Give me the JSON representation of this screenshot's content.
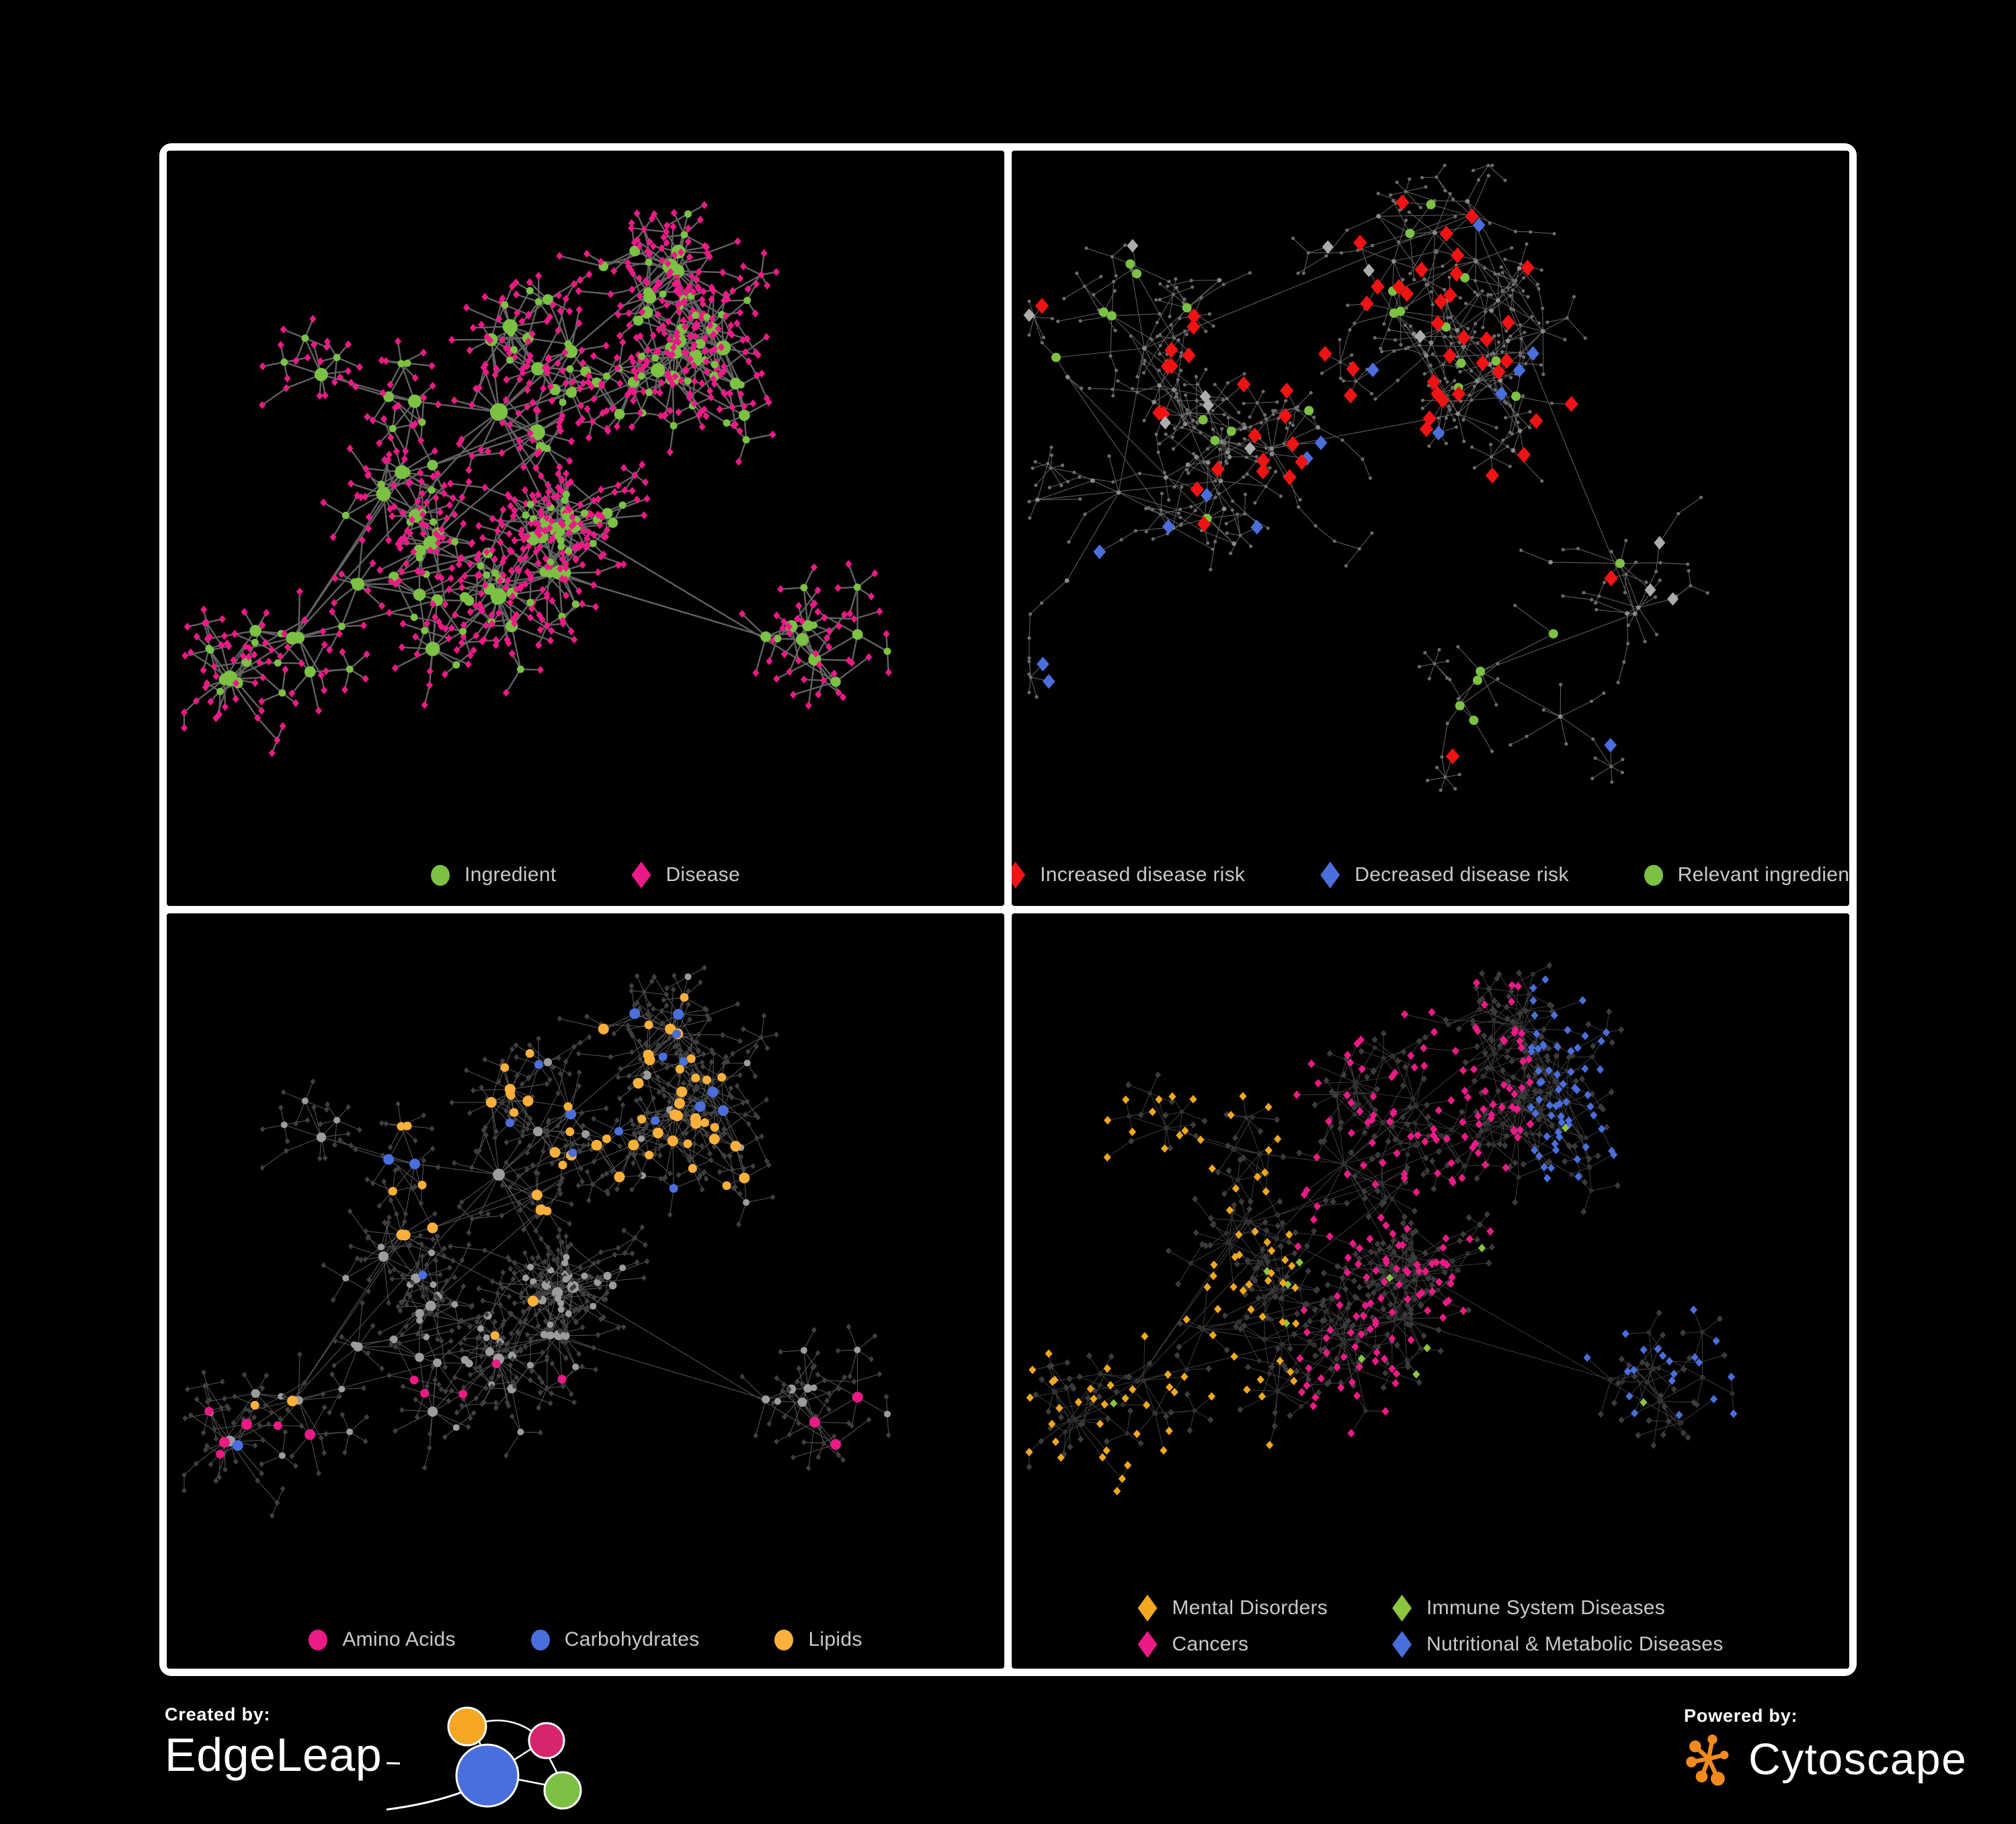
{
  "page": {
    "background": "#000000",
    "frame_color": "#FFFFFF"
  },
  "panels": [
    {
      "id": "ingredient-disease",
      "legend": {
        "columns": 1,
        "items": [
          {
            "shape": "circle",
            "color": "#7CC143",
            "label": "Ingredient"
          },
          {
            "shape": "diamond",
            "color": "#EC1A86",
            "label": "Disease"
          }
        ]
      },
      "network": {
        "seed": 7,
        "clusters": 12,
        "hubs": 92,
        "extra_links": 30,
        "leaf_min": 2,
        "leaf_range": 11,
        "chain_prob": 0.16,
        "circle_leaf_prob": 0.18,
        "fan_prob": 0.3,
        "style": {
          "edge_color": "#6B6B6B",
          "edge_width": 2.4,
          "edge_opacity": 0.92,
          "ingredient_color": "#7CC143",
          "disease_color": "#EC1A86"
        }
      }
    },
    {
      "id": "disease-risk",
      "legend": {
        "columns": 1,
        "items": [
          {
            "shape": "diamond",
            "color": "#F01313",
            "label": "Increased disease risk"
          },
          {
            "shape": "diamond",
            "color": "#4A6EDB",
            "label": "Decreased disease risk"
          },
          {
            "shape": "circle",
            "color": "#7CC143",
            "label": "Relevant ingredient"
          }
        ]
      },
      "network": {
        "seed": 13,
        "clusters": 16,
        "hubs": 84,
        "extra_links": 26,
        "leaf_min": 1,
        "leaf_range": 6,
        "chain_prob": 0.4,
        "circle_leaf_prob": 0.05,
        "fan_prob": 0.5,
        "style": {
          "edge_color": "#7C7C7C",
          "edge_width": 1.1,
          "edge_opacity": 0.75,
          "base_node_color": "#6C6C6C",
          "hub_node_color": "#8A8A8A",
          "increased_color": "#F01313",
          "decreased_color": "#4A6EDB",
          "unchanged_color": "#ACACAC",
          "ingredient_color": "#7CC143",
          "increased_prob_center": 0.13,
          "increased_prob_outer": 0.013,
          "decreased_prob": 0.022,
          "unchanged_prob": 0.012,
          "relevant_hub_prob": 0.3,
          "relevant_leaf_prob": 0.1
        }
      }
    },
    {
      "id": "nutrient-categories",
      "legend": {
        "columns": 1,
        "items": [
          {
            "shape": "circle",
            "color": "#EC1A86",
            "label": "Amino Acids"
          },
          {
            "shape": "circle",
            "color": "#4A6EDB",
            "label": "Carbohydrates"
          },
          {
            "shape": "circle",
            "color": "#FBB03B",
            "label": "Lipids"
          }
        ]
      },
      "network": {
        "seed": 7,
        "clusters": 12,
        "hubs": 92,
        "extra_links": 30,
        "leaf_min": 2,
        "leaf_range": 11,
        "chain_prob": 0.16,
        "circle_leaf_prob": 0.18,
        "fan_prob": 0.3,
        "style": {
          "edge_color": "#A8A8A8",
          "edge_width": 1.05,
          "edge_opacity": 0.5,
          "amino_color": "#EC1A86",
          "carb_color": "#4A6EDB",
          "lipid_color": "#FBB03B",
          "base_circle_color": "#9C9C9C",
          "other_node_color": "#3F3F3F",
          "lipid_cluster_prob": 0.72,
          "carb_cluster_prob": 0.16,
          "lipid_scatter_prob": 0.05,
          "carb_scatter_prob": 0.02,
          "amino_scatter_prob": 0.22
        }
      }
    },
    {
      "id": "disease-categories",
      "legend": {
        "columns": 2,
        "items": [
          {
            "shape": "diamond",
            "color": "#F2A71E",
            "label": "Mental Disorders"
          },
          {
            "shape": "diamond",
            "color": "#8CC63F",
            "label": "Immune System Diseases"
          },
          {
            "shape": "diamond",
            "color": "#EC1A86",
            "label": "Cancers"
          },
          {
            "shape": "diamond",
            "color": "#4A6EDB",
            "label": "Nutritional & Metabolic Diseases"
          }
        ]
      },
      "network": {
        "seed": 7,
        "clusters": 12,
        "hubs": 92,
        "extra_links": 30,
        "leaf_min": 2,
        "leaf_range": 11,
        "chain_prob": 0.16,
        "circle_leaf_prob": 0.18,
        "fan_prob": 0.3,
        "style": {
          "edge_color": "#9A9A9A",
          "edge_width": 0.95,
          "edge_opacity": 0.42,
          "mental_color": "#F2A71E",
          "immune_color": "#8CC63F",
          "cancer_color": "#EC1A86",
          "metabolic_color": "#4A6EDB",
          "base_diamond_color": "#3B3B3B",
          "circle_color": "#303030",
          "mental_prob": 0.52,
          "cancer_prob": 0.4,
          "metabolic_prob": 0.5,
          "immune_prob": 0.02
        }
      }
    }
  ],
  "footer": {
    "created_by": {
      "label": "Created by:",
      "brand": "EdgeLeap",
      "logo_colors": {
        "gold": "#F5A623",
        "magenta": "#D6246E",
        "blue": "#4A6EDB",
        "green": "#7CC143",
        "line": "#FFFFFF"
      }
    },
    "powered_by": {
      "label": "Powered by:",
      "brand": "Cytoscape",
      "logo_color": "#F08A1D"
    }
  }
}
